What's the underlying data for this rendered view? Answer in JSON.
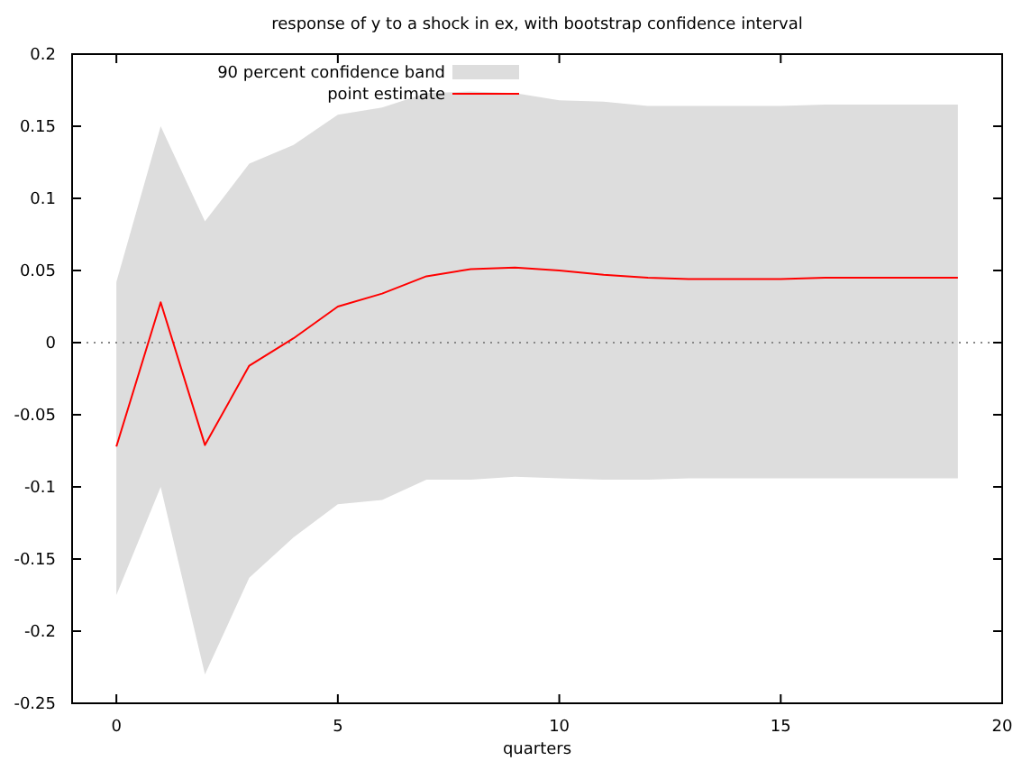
{
  "chart_data": {
    "type": "line",
    "title": "response of y to a shock in ex, with bootstrap confidence interval",
    "xlabel": "quarters",
    "x": [
      0,
      1,
      2,
      3,
      4,
      5,
      6,
      7,
      8,
      9,
      10,
      11,
      12,
      13,
      14,
      15,
      16,
      17,
      18,
      19
    ],
    "series": [
      {
        "name": "point estimate",
        "color": "#ff0000",
        "values": [
          -0.072,
          0.028,
          -0.071,
          -0.016,
          0.003,
          0.025,
          0.034,
          0.046,
          0.051,
          0.052,
          0.05,
          0.047,
          0.045,
          0.044,
          0.044,
          0.044,
          0.045,
          0.045,
          0.045,
          0.045
        ],
        "upper": [
          0.042,
          0.15,
          0.084,
          0.124,
          0.137,
          0.158,
          0.163,
          0.173,
          0.174,
          0.173,
          0.168,
          0.167,
          0.164,
          0.164,
          0.164,
          0.164,
          0.165,
          0.165,
          0.165,
          0.165
        ],
        "lower": [
          -0.175,
          -0.1,
          -0.23,
          -0.163,
          -0.135,
          -0.112,
          -0.109,
          -0.095,
          -0.095,
          -0.093,
          -0.094,
          -0.095,
          -0.095,
          -0.094,
          -0.094,
          -0.094,
          -0.094,
          -0.094,
          -0.094,
          -0.094
        ]
      }
    ],
    "annotations": [
      "90 percent confidence band"
    ],
    "xlim": [
      -1,
      20
    ],
    "xticks": [
      0,
      5,
      10,
      15,
      20
    ],
    "ylim": [
      -0.25,
      0.2
    ],
    "yticks": [
      -0.25,
      -0.2,
      -0.15,
      -0.1,
      -0.05,
      0,
      0.05,
      0.1,
      0.15,
      0.2
    ],
    "ref_lines": [
      {
        "axis": "y",
        "value": 0,
        "line_style": "dotted",
        "color": "#888888"
      }
    ],
    "legend": "top left",
    "grid": false,
    "marker": "none",
    "line_style": "solid"
  }
}
